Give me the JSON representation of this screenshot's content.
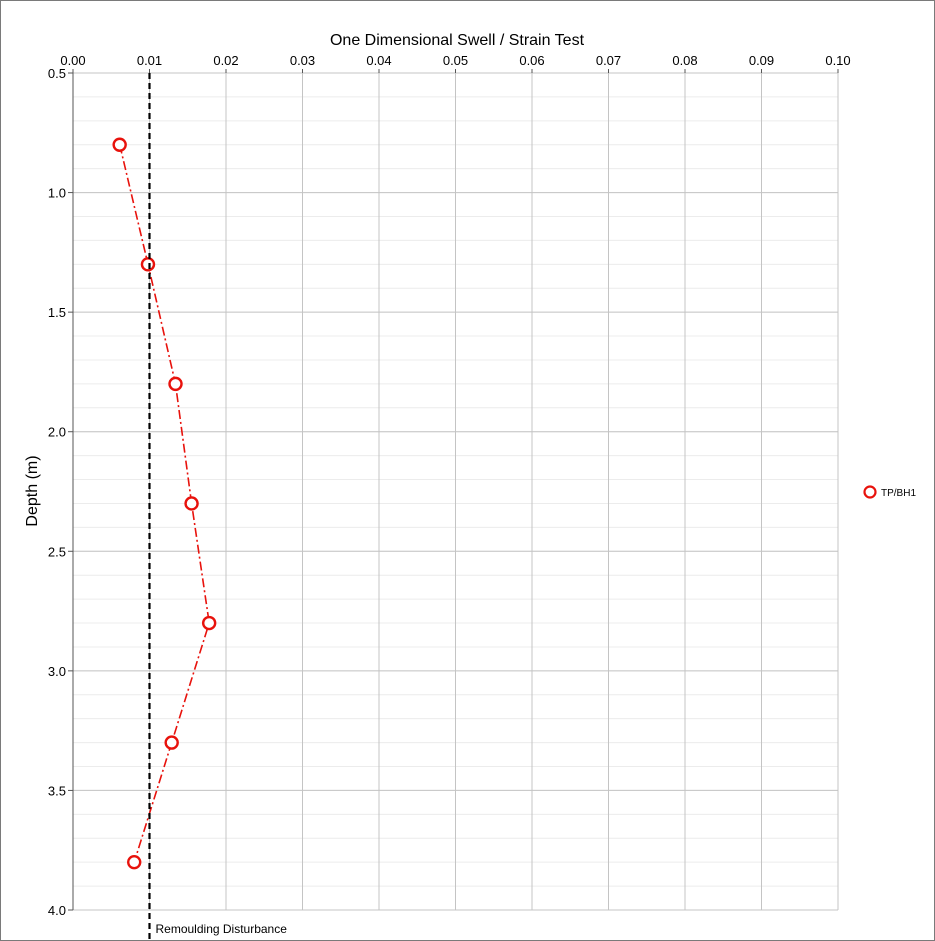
{
  "chart_data": {
    "type": "scatter",
    "title": "One Dimensional Swell / Strain Test",
    "xlabel": "",
    "ylabel": "Depth (m)",
    "x_axis_position": "top",
    "y_inverted": true,
    "xlim": [
      0.0,
      0.1
    ],
    "ylim": [
      0.5,
      4.0
    ],
    "x_ticks": [
      "0.00",
      "0.01",
      "0.02",
      "0.03",
      "0.04",
      "0.05",
      "0.06",
      "0.07",
      "0.08",
      "0.09",
      "0.10"
    ],
    "y_ticks": [
      "0.5",
      "1.0",
      "1.5",
      "2.0",
      "2.5",
      "3.0",
      "3.5",
      "4.0"
    ],
    "grid": true,
    "legend_position": "right",
    "series": [
      {
        "name": "TP/BH1",
        "color": "#e8120c",
        "marker": "open-circle",
        "line_style": "dash-dot",
        "points": [
          {
            "x": 0.0061,
            "y": 0.8
          },
          {
            "x": 0.0098,
            "y": 1.3
          },
          {
            "x": 0.0134,
            "y": 1.8
          },
          {
            "x": 0.0155,
            "y": 2.3
          },
          {
            "x": 0.0178,
            "y": 2.8
          },
          {
            "x": 0.0129,
            "y": 3.3
          },
          {
            "x": 0.008,
            "y": 3.8
          }
        ]
      }
    ],
    "reference_line": {
      "x": 0.01,
      "label": "Remoulding Disturbance",
      "style": "dashed",
      "color": "#000000"
    }
  }
}
